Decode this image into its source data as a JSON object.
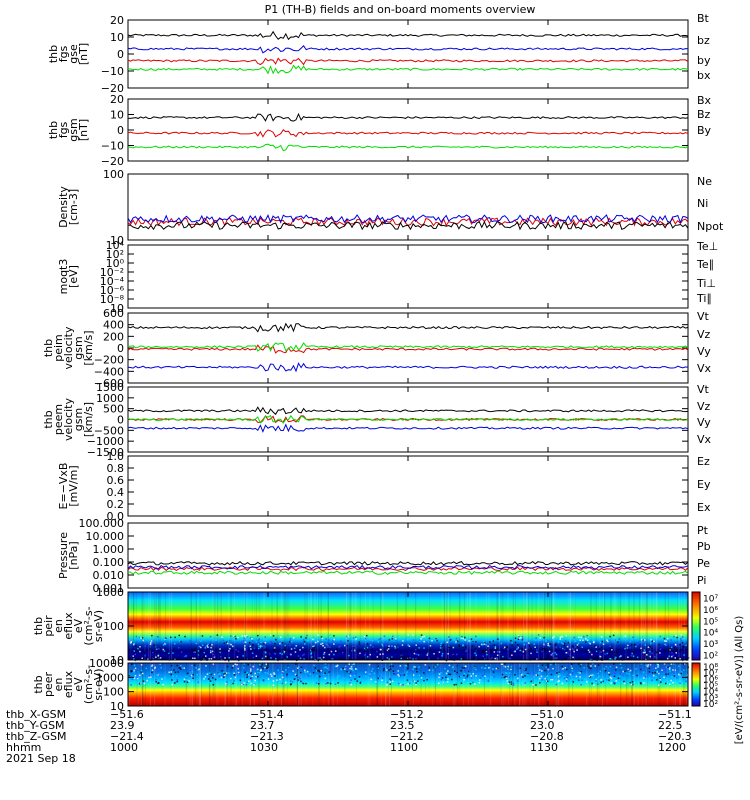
{
  "title": "P1 (TH-B) fields and on-board moments overview",
  "date": "2021 Sep 18",
  "colors": {
    "black": "#000000",
    "red": "#e00000",
    "blue": "#0000dd",
    "green": "#00dd00"
  },
  "chart_data": [
    {
      "type": "line",
      "panel": "fgs-gse",
      "ylabel": [
        "thb",
        "fgs",
        "gse",
        "[nT]"
      ],
      "ylim": [
        -20,
        20
      ],
      "yticks": [
        "20",
        "10",
        "0",
        "−10",
        "−20"
      ],
      "series": [
        {
          "name": "Bt",
          "color": "black",
          "level": 11
        },
        {
          "name": "bz",
          "color": "red",
          "level": -4
        },
        {
          "name": "by",
          "color": "green",
          "level": -9
        },
        {
          "name": "bx",
          "color": "blue",
          "level": 3
        }
      ]
    },
    {
      "type": "line",
      "panel": "fgs-gsm",
      "ylabel": [
        "thb",
        "fgs",
        "gsm",
        "[nT]"
      ],
      "ylim": [
        -20,
        20
      ],
      "yticks": [
        "20",
        "10",
        "0",
        "−10",
        "−20"
      ],
      "series": [
        {
          "name": "Bx",
          "color": "black",
          "level": 8
        },
        {
          "name": "Bz",
          "color": "red",
          "level": -2
        },
        {
          "name": "By",
          "color": "green",
          "level": -11
        }
      ]
    },
    {
      "type": "line",
      "panel": "density",
      "ylabel": [
        "Density",
        "[cm-3]"
      ],
      "ylim": [
        2,
        300
      ],
      "log": true,
      "yticks": [
        "100",
        "10"
      ],
      "series": [
        {
          "name": "Ne",
          "color": "red",
          "level": 8
        },
        {
          "name": "Ni",
          "color": "black",
          "level": 6
        },
        {
          "name": "Npot",
          "color": "blue",
          "level": 10
        }
      ]
    },
    {
      "type": "line",
      "panel": "temperature",
      "ylabel": [
        "moqt3",
        "[eV]"
      ],
      "yticks": [
        "10⁴",
        "10²",
        "10⁰",
        "10⁻²",
        "10⁻⁴",
        "10⁻⁶",
        "10⁻⁸",
        "10"
      ],
      "series": [
        {
          "name": "Te⊥",
          "color": "red"
        },
        {
          "name": "Te∥",
          "color": "black"
        },
        {
          "name": "Ti⊥",
          "color": "blue"
        },
        {
          "name": "Ti∥",
          "color": "green"
        }
      ]
    },
    {
      "type": "line",
      "panel": "peim-velocity",
      "ylabel": [
        "thb",
        "peim",
        "velocity",
        "gsm",
        "[km/s]"
      ],
      "ylim": [
        -600,
        600
      ],
      "yticks": [
        "600",
        "400",
        "200",
        "0",
        "−200",
        "−400",
        "−600"
      ],
      "series": [
        {
          "name": "Vt",
          "color": "black",
          "level": 350
        },
        {
          "name": "Vz",
          "color": "red",
          "level": -20
        },
        {
          "name": "Vy",
          "color": "green",
          "level": 20
        },
        {
          "name": "Vx",
          "color": "blue",
          "level": -330
        }
      ]
    },
    {
      "type": "line",
      "panel": "peem-velocity",
      "ylabel": [
        "thb",
        "peem",
        "velocity",
        "gsm",
        "[km/s]"
      ],
      "ylim": [
        -1500,
        1500
      ],
      "yticks": [
        "1500",
        "1000",
        "500",
        "0",
        "−500",
        "−1000",
        "−1500"
      ],
      "series": [
        {
          "name": "Vt",
          "color": "black",
          "level": 400
        },
        {
          "name": "Vz",
          "color": "red",
          "level": 0
        },
        {
          "name": "Vy",
          "color": "green",
          "level": 0
        },
        {
          "name": "Vx",
          "color": "blue",
          "level": -400
        }
      ]
    },
    {
      "type": "line",
      "panel": "efield",
      "ylabel": [
        "E=−VxB",
        "[mV/m]"
      ],
      "ylim": [
        0,
        1
      ],
      "yticks": [
        "1.0",
        "0.8",
        "0.6",
        "0.4",
        "0.2",
        "0.0"
      ],
      "series": [
        {
          "name": "Ez",
          "color": "red"
        },
        {
          "name": "Ey",
          "color": "green"
        },
        {
          "name": "Ex",
          "color": "blue"
        }
      ]
    },
    {
      "type": "line",
      "panel": "pressure",
      "ylabel": [
        "Pressure",
        "[nPa]"
      ],
      "ylim": [
        0.001,
        100
      ],
      "log": true,
      "yticks": [
        "100.000",
        "10.000",
        "1.000",
        "0.100",
        "0.010",
        "0.001"
      ],
      "series": [
        {
          "name": "Pt",
          "color": "black",
          "level": 0.08
        },
        {
          "name": "Pb",
          "color": "red",
          "level": 0.03
        },
        {
          "name": "Pe",
          "color": "green",
          "level": 0.015
        },
        {
          "name": "Pi",
          "color": "blue",
          "level": 0.04
        }
      ]
    },
    {
      "type": "heatmap",
      "panel": "peir-en",
      "ylabel": [
        "thb",
        "peir",
        "en",
        "eflux",
        "eV",
        "(cm²-s-",
        "sr-eV)"
      ],
      "yticks": [
        "1000",
        "100",
        "10"
      ]
    },
    {
      "type": "heatmap",
      "panel": "peer-en",
      "ylabel": [
        "thb",
        "peer",
        "en",
        "eflux",
        "eV",
        "(cm²-s-",
        "sr-eV)"
      ],
      "yticks": [
        "10000",
        "1000",
        "100",
        "10"
      ]
    }
  ],
  "colorbar": {
    "label": "[eV/(cm²-s-sr-eV)] (All Qs)",
    "ion_ticks": [
      "10⁷",
      "10⁶",
      "10⁵",
      "10⁴",
      "10³",
      "10²"
    ],
    "electron_ticks": [
      "10⁸",
      "10⁷",
      "10⁶",
      "10⁵",
      "10⁴",
      "10³",
      "10²"
    ]
  },
  "ephemeris": {
    "labels": [
      "thb_X-GSM",
      "thb_Y-GSM",
      "thb_Z-GSM",
      "hhmm"
    ],
    "columns": [
      [
        "−51.6",
        "23.9",
        "−21.4",
        "1000"
      ],
      [
        "−51.4",
        "23.7",
        "−21.3",
        "1030"
      ],
      [
        "−51.2",
        "23.5",
        "−21.2",
        "1100"
      ],
      [
        "−51.0",
        "23.0",
        "−20.8",
        "1130"
      ],
      [
        "−51.1",
        "22.5",
        "−20.3",
        "1200"
      ]
    ]
  }
}
